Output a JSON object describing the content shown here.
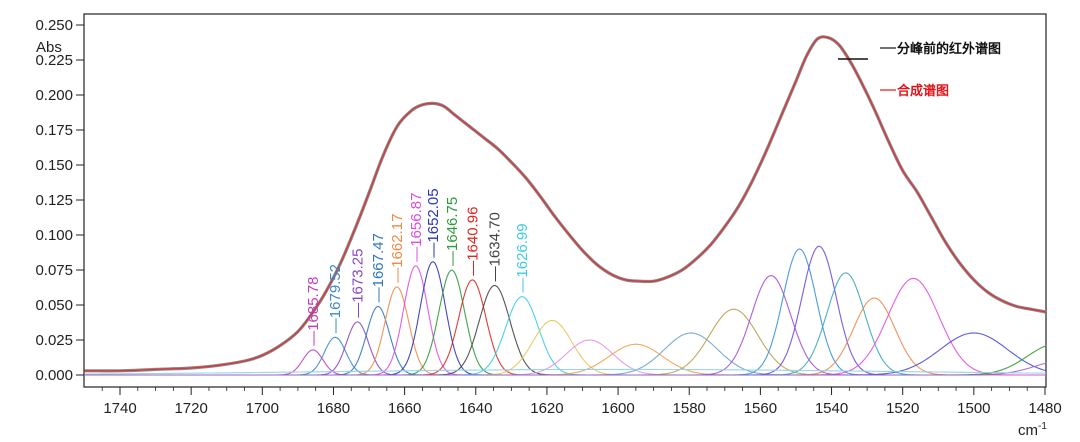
{
  "chart_data": {
    "type": "line",
    "title": "",
    "xlabel": "cm-1",
    "xlabel_base": "cm",
    "xlabel_sup": "-1",
    "ylabel": "Abs",
    "x_reversed": true,
    "xlim": [
      1750,
      1479
    ],
    "ylim": [
      0,
      0.25
    ],
    "x_ticks": [
      1740,
      1720,
      1700,
      1680,
      1660,
      1640,
      1620,
      1600,
      1580,
      1560,
      1540,
      1520,
      1500,
      1480
    ],
    "y_ticks": [
      0.0,
      0.025,
      0.05,
      0.075,
      0.1,
      0.125,
      0.15,
      0.175,
      0.2,
      0.225,
      0.25
    ],
    "y_tick_labels": [
      "0.000",
      "0.025",
      "0.050",
      "0.075",
      "0.100",
      "0.125",
      "0.150",
      "0.175",
      "0.200",
      "0.225",
      "0.250"
    ],
    "grid": false,
    "legend": {
      "placement": "top-right",
      "entries": [
        {
          "name": "分峰前的红外谱图",
          "color": "#111111",
          "text_color": "#111111"
        },
        {
          "name": "合成谱图",
          "color": "#e2141b",
          "text_color": "#e2141b"
        }
      ]
    },
    "series": [
      {
        "name": "分峰前的红外谱图",
        "color": "#8a8a8a",
        "x": [
          1750,
          1740,
          1730,
          1720,
          1712,
          1705,
          1700,
          1695,
          1690,
          1686,
          1682,
          1678,
          1674,
          1670,
          1666,
          1662,
          1658,
          1655,
          1652,
          1649,
          1646,
          1642,
          1638,
          1634,
          1630,
          1626,
          1622,
          1618,
          1614,
          1610,
          1606,
          1602,
          1598,
          1594,
          1590,
          1586,
          1582,
          1578,
          1574,
          1570,
          1566,
          1562,
          1558,
          1554,
          1550,
          1547,
          1544,
          1541,
          1538,
          1535,
          1532,
          1528,
          1524,
          1520,
          1516,
          1512,
          1508,
          1504,
          1500,
          1496,
          1492,
          1488,
          1484,
          1479
        ],
        "y": [
          0.003,
          0.003,
          0.004,
          0.005,
          0.007,
          0.01,
          0.014,
          0.021,
          0.031,
          0.044,
          0.06,
          0.08,
          0.104,
          0.13,
          0.157,
          0.178,
          0.189,
          0.193,
          0.194,
          0.192,
          0.186,
          0.178,
          0.17,
          0.162,
          0.152,
          0.141,
          0.128,
          0.114,
          0.101,
          0.089,
          0.079,
          0.072,
          0.068,
          0.067,
          0.067,
          0.07,
          0.075,
          0.083,
          0.093,
          0.106,
          0.121,
          0.14,
          0.162,
          0.186,
          0.21,
          0.228,
          0.24,
          0.241,
          0.236,
          0.225,
          0.211,
          0.19,
          0.167,
          0.146,
          0.131,
          0.113,
          0.095,
          0.08,
          0.068,
          0.059,
          0.053,
          0.049,
          0.047,
          0.045
        ]
      },
      {
        "name": "合成谱图",
        "color": "#d9363a",
        "same_as": 0
      }
    ],
    "bands": [
      {
        "center": 1685.78,
        "height": 0.018,
        "width": 2.8,
        "color": "#c03fbd",
        "label": "1685.78"
      },
      {
        "center": 1679.52,
        "height": 0.027,
        "width": 3.0,
        "color": "#3c88c8",
        "label": "1679.52"
      },
      {
        "center": 1673.25,
        "height": 0.038,
        "width": 3.1,
        "color": "#8a47c8",
        "label": "1673.25"
      },
      {
        "center": 1667.47,
        "height": 0.049,
        "width": 3.2,
        "color": "#2f78c0",
        "label": "1667.47"
      },
      {
        "center": 1662.17,
        "height": 0.063,
        "width": 3.3,
        "color": "#f08a45",
        "label": "1662.17"
      },
      {
        "center": 1656.87,
        "height": 0.078,
        "width": 3.4,
        "color": "#e04ce0",
        "label": "1656.87"
      },
      {
        "center": 1652.05,
        "height": 0.081,
        "width": 3.5,
        "color": "#2d35b8",
        "label": "1652.05"
      },
      {
        "center": 1646.75,
        "height": 0.075,
        "width": 3.6,
        "color": "#2e9a3a",
        "label": "1646.75"
      },
      {
        "center": 1640.96,
        "height": 0.068,
        "width": 3.8,
        "color": "#e0261f",
        "label": "1640.96"
      },
      {
        "center": 1634.7,
        "height": 0.064,
        "width": 4.3,
        "color": "#444444",
        "label": "1634.70"
      },
      {
        "center": 1626.99,
        "height": 0.056,
        "width": 4.6,
        "color": "#3ccbe6",
        "label": "1626.99"
      },
      {
        "center": 1618.5,
        "height": 0.039,
        "width": 5.5,
        "color": "#e8c45a"
      },
      {
        "center": 1608.0,
        "height": 0.025,
        "width": 6.5,
        "color": "#e88fe8"
      },
      {
        "center": 1595.0,
        "height": 0.022,
        "width": 7.5,
        "color": "#f0a24a"
      },
      {
        "center": 1579.5,
        "height": 0.03,
        "width": 7.5,
        "color": "#6aa6c8"
      },
      {
        "center": 1567.5,
        "height": 0.047,
        "width": 6.8,
        "color": "#b7a14a"
      },
      {
        "center": 1557.0,
        "height": 0.071,
        "width": 5.5,
        "color": "#a44ed8"
      },
      {
        "center": 1549.0,
        "height": 0.09,
        "width": 4.7,
        "color": "#3b8fe0"
      },
      {
        "center": 1543.5,
        "height": 0.092,
        "width": 4.8,
        "color": "#6b4ae0"
      },
      {
        "center": 1536.0,
        "height": 0.073,
        "width": 5.3,
        "color": "#3aa8b8"
      },
      {
        "center": 1528.0,
        "height": 0.055,
        "width": 5.8,
        "color": "#f0884a"
      },
      {
        "center": 1517.0,
        "height": 0.069,
        "width": 7.2,
        "color": "#e04ce0"
      },
      {
        "center": 1500.0,
        "height": 0.03,
        "width": 9.5,
        "color": "#4a4ad8"
      },
      {
        "center": 1477.0,
        "height": 0.022,
        "width": 8.0,
        "color": "#2e9a3a"
      },
      {
        "center": 1475.0,
        "height": 0.01,
        "width": 8.0,
        "color": "#9c5fd0"
      },
      {
        "center": 1600.0,
        "height": 0.004,
        "width": 80.0,
        "color": "#8fd0e8"
      }
    ]
  }
}
